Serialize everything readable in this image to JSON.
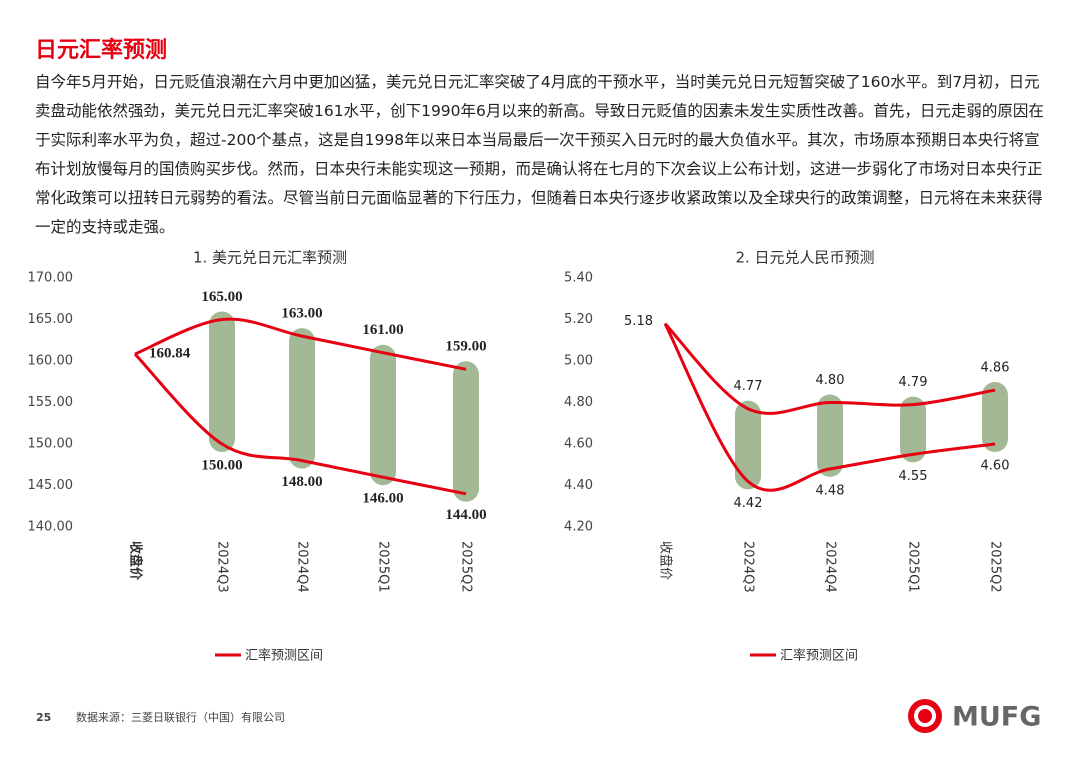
{
  "title": "日元汇率预测",
  "paragraph": "自今年5月开始，日元贬值浪潮在六月中更加凶猛，美元兑日元汇率突破了4月底的干预水平，当时美元兑日元短暂突破了160水平。到7月初，日元卖盘动能依然强劲，美元兑日元汇率突破161水平，创下1990年6月以来的新高。导致日元贬值的因素未发生实质性改善。首先，日元走弱的原因在于实际利率水平为负，超过-200个基点，这是自1998年以来日本当局最后一次干预买入日元时的最大负值水平。其次，市场原本预期日本央行将宣布计划放慢每月的国债购买步伐。然而，日本央行未能实现这一预期，而是确认将在七月的下次会议上公布计划，这进一步弱化了市场对日本央行正常化政策可以扭转日元弱势的看法。尽管当前日元面临显著的下行压力，但随着日本央行逐步收紧政策以及全球央行的政策调整，日元将在未来获得一定的支持或走强。",
  "page_number": "25",
  "source": "数据来源：三菱日联银行（中国）有限公司",
  "logo_text": "MUFG",
  "chart_data": [
    {
      "type": "range",
      "title": "1. 美元兑日元汇率预测",
      "categories": [
        "收盘价",
        "2024Q3",
        "2024Q4",
        "2025Q1",
        "2025Q2"
      ],
      "series": [
        {
          "name": "汇率预测区间",
          "color": "#e60012",
          "bar_color": "#a3b995",
          "high": [
            160.84,
            165,
            163,
            161,
            159
          ],
          "low": [
            160.84,
            150,
            148,
            146,
            144
          ],
          "high_labels": [
            "160.84",
            "165.00",
            "163.00",
            "161.00",
            "159.00"
          ],
          "low_labels": [
            null,
            "150.00",
            "148.00",
            "146.00",
            "144.00"
          ]
        }
      ],
      "ylim": [
        140,
        170
      ],
      "yticks": [
        {
          "value": 140,
          "label": "140.00"
        },
        {
          "value": 145,
          "label": "145.00"
        },
        {
          "value": 150,
          "label": "150.00"
        },
        {
          "value": 155,
          "label": "155.00"
        },
        {
          "value": 160,
          "label": "160.00"
        },
        {
          "value": 165,
          "label": "165.00"
        },
        {
          "value": 170,
          "label": "170.00"
        }
      ]
    },
    {
      "type": "range",
      "title": "2. 日元兑人民币预测",
      "categories": [
        "收盘价",
        "2024Q3",
        "2024Q4",
        "2025Q1",
        "2025Q2"
      ],
      "series": [
        {
          "name": "汇率预测区间",
          "color": "#e60012",
          "bar_color": "#a3b995",
          "high": [
            5.18,
            4.77,
            4.8,
            4.79,
            4.86
          ],
          "low": [
            5.18,
            4.42,
            4.48,
            4.55,
            4.6
          ],
          "high_labels": [
            "5.18",
            "4.77",
            "4.80",
            "4.79",
            "4.86"
          ],
          "low_labels": [
            null,
            "4.42",
            "4.48",
            "4.55",
            "4.60"
          ]
        }
      ],
      "ylim": [
        4.2,
        5.4
      ],
      "yticks": [
        {
          "value": 4.2,
          "label": "4.20"
        },
        {
          "value": 4.4,
          "label": "4.40"
        },
        {
          "value": 4.6,
          "label": "4.60"
        },
        {
          "value": 4.8,
          "label": "4.80"
        },
        {
          "value": 5.0,
          "label": "5.00"
        },
        {
          "value": 5.2,
          "label": "5.20"
        },
        {
          "value": 5.4,
          "label": "5.40"
        }
      ]
    }
  ]
}
